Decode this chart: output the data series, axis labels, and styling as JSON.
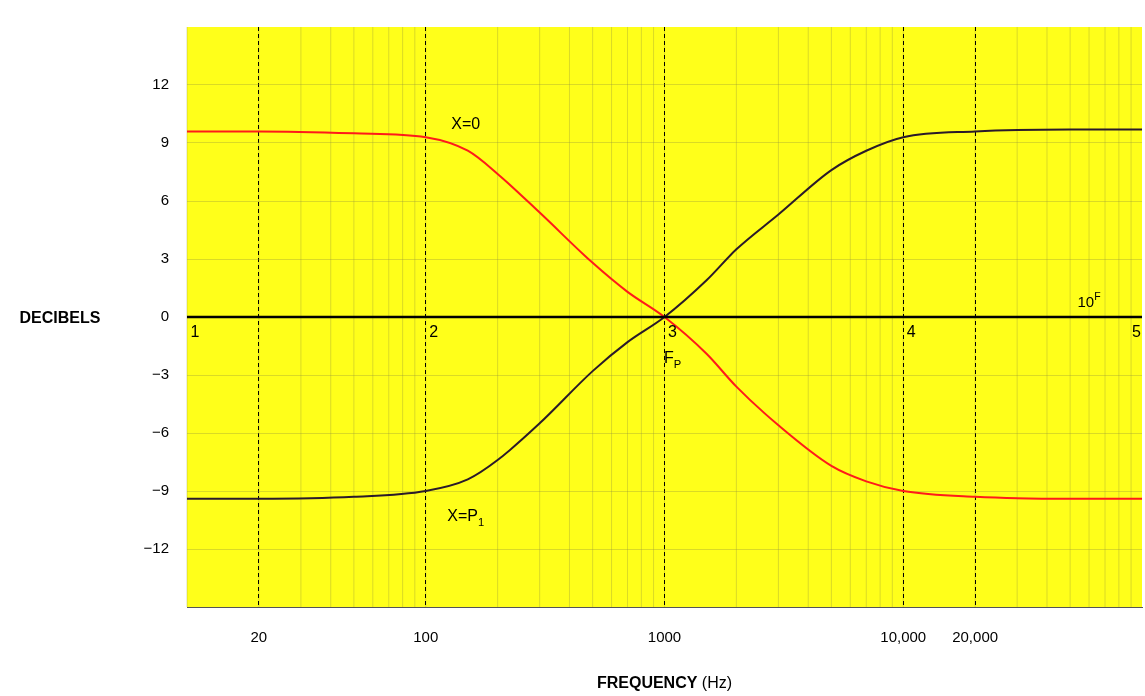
{
  "chart_data": {
    "type": "line",
    "xlabel": "FREQUENCY (Hz)",
    "ylabel": "DECIBELS",
    "x": [
      10,
      20,
      50,
      100,
      150,
      200,
      300,
      500,
      700,
      1000,
      1500,
      2000,
      3000,
      5000,
      7000,
      10000,
      20000,
      50000,
      100000
    ],
    "series": [
      {
        "name": "X=0",
        "color": "#ff1a1a",
        "values": [
          9.6,
          9.6,
          9.5,
          9.3,
          8.6,
          7.4,
          5.4,
          2.8,
          1.3,
          0,
          -1.9,
          -3.6,
          -5.6,
          -7.7,
          -8.5,
          -9.0,
          -9.3,
          -9.4,
          -9.4
        ]
      },
      {
        "name": "X=P$_{1}$",
        "color": "#2a1a2a",
        "values": [
          -9.4,
          -9.4,
          -9.3,
          -9.0,
          -8.4,
          -7.4,
          -5.5,
          -2.8,
          -1.3,
          0,
          1.9,
          3.5,
          5.3,
          7.6,
          8.6,
          9.3,
          9.6,
          9.7,
          9.7
        ]
      }
    ],
    "log": "x",
    "xlim": [
      10,
      100000
    ],
    "xticks": [
      20,
      100,
      1000,
      {
        "value": 10000,
        "label": "10,000"
      },
      {
        "value": 20000,
        "label": "20,000"
      }
    ],
    "ylim": [
      -15,
      15
    ],
    "yticks": [
      {
        "value": -12,
        "label": "−12"
      },
      {
        "value": -9,
        "label": "−9"
      },
      {
        "value": -6,
        "label": "−6"
      },
      {
        "value": -3,
        "label": "−3"
      },
      0,
      3,
      6,
      9,
      12
    ],
    "grid": true,
    "legend": false,
    "marker": "none",
    "line_style": "solid",
    "ref_lines": [
      {
        "axis": "y",
        "value": 0,
        "color": "#000000"
      }
    ],
    "annotations": [
      {
        "text": "1",
        "x": 10,
        "y": 0
      },
      {
        "text": "2",
        "x": 100,
        "y": 0
      },
      {
        "text": "3",
        "x": 1000,
        "y": 0
      },
      {
        "text": "4",
        "x": 10000,
        "y": 0
      },
      {
        "text": "5",
        "x": 100000,
        "y": 0
      },
      {
        "text": "10$^{F}$",
        "x": 60000,
        "y": 0
      },
      {
        "text": "F$_{P}$",
        "x": 1000,
        "y": 0
      }
    ]
  }
}
